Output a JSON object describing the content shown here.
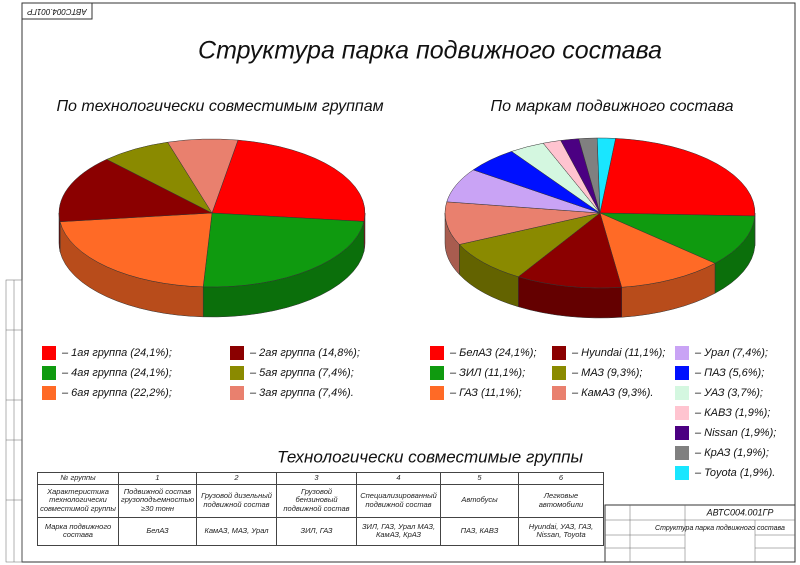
{
  "sheet_code": "АВТС004.001ГР",
  "title": "Структура парка подвижного состава",
  "chart_data": [
    {
      "type": "pie",
      "title": "По технологически совместимым группам",
      "categories": [
        "– 1ая группа (24,1%);",
        "– 4ая группа (24,1%);",
        "– 6ая группа (22,2%);",
        "– 2ая группа (14,8%);",
        "– 5ая группа (7,4%);",
        "– 3ая группа (7,4%)."
      ],
      "values": [
        24.1,
        24.1,
        22.2,
        14.8,
        7.4,
        7.4
      ],
      "colors": [
        "#ff0000",
        "#0f9a0f",
        "#ff6a26",
        "#8b0000",
        "#8a8a00",
        "#e9806e"
      ]
    },
    {
      "type": "pie",
      "title": "По маркам подвижного состава",
      "categories": [
        "– БелАЗ (24,1%);",
        "– ЗИЛ (11,1%);",
        "– ГАЗ (11,1%);",
        "– Hyundai (11,1%);",
        "– МАЗ (9,3%);",
        "– КамАЗ (9,3%).",
        "– Урал (7,4%);",
        "– ПАЗ (5,6%);",
        "– УАЗ (3,7%);",
        "– КАВЗ (1,9%);",
        "– Nissan (1,9%);",
        "– КрАЗ (1,9%);",
        "– Toyota (1,9%)."
      ],
      "values": [
        24.1,
        11.1,
        11.1,
        11.1,
        9.3,
        9.3,
        7.4,
        5.6,
        3.7,
        1.9,
        1.9,
        1.9,
        1.9
      ],
      "colors": [
        "#ff0000",
        "#0f9a0f",
        "#ff6a26",
        "#8b0000",
        "#8a8a00",
        "#e9806e",
        "#c9a3f5",
        "#0010ff",
        "#d4f7e0",
        "#ffc4d0",
        "#4b0082",
        "#808080",
        "#19e6ff"
      ]
    }
  ],
  "table": {
    "title": "Технологически совместимые группы",
    "rows": [
      [
        "№ группы",
        "1",
        "2",
        "3",
        "4",
        "5",
        "6"
      ],
      [
        "Характеристика технологически совместимой группы",
        "Подвижной состав грузоподъемностью ≥30 тонн",
        "Грузовой дизельный подвижной состав",
        "Грузовой бензиновый подвижной состав",
        "Специализированный подвижной состав",
        "Автобусы",
        "Легковые автомобили"
      ],
      [
        "Марка подвижного состава",
        "БелАЗ",
        "КамАЗ, МАЗ, Урал",
        "ЗИЛ, ГАЗ",
        "ЗИЛ, ГАЗ, Урал МАЗ, КамАЗ, КрАЗ",
        "ПАЗ, КАВЗ",
        "Hyundai, УАЗ, ГАЗ, Nissan, Toyota"
      ]
    ]
  },
  "stamp": {
    "name": "Структура парка подвижного состава"
  }
}
